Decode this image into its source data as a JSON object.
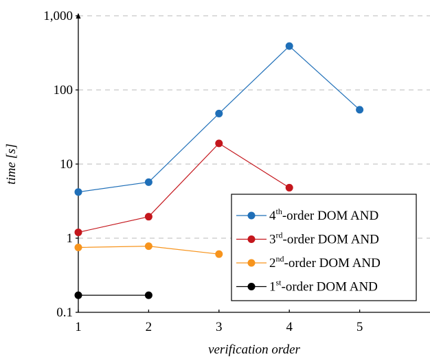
{
  "chart_data": {
    "type": "line",
    "xlabel": "verification order",
    "ylabel": "time [s]",
    "xlim": [
      1,
      6
    ],
    "ylim": [
      0.1,
      1000
    ],
    "yscale": "log",
    "grid": "horizontal-dashed",
    "legend_position": "bottom-right",
    "x_ticks": [
      "1",
      "2",
      "3",
      "4",
      "5"
    ],
    "y_ticks": [
      {
        "value": 0.1,
        "label": "0.1"
      },
      {
        "value": 1,
        "label": "1"
      },
      {
        "value": 10,
        "label": "10"
      },
      {
        "value": 100,
        "label": "100"
      },
      {
        "value": 1000,
        "label": "1,000"
      }
    ],
    "series": [
      {
        "name": "4th-order DOM AND",
        "name_order": "4",
        "name_sup": "th",
        "name_rest": "-order DOM AND",
        "color": "#1f6fb8",
        "x": [
          1,
          2,
          3,
          4,
          5
        ],
        "y": [
          4.2,
          5.7,
          48,
          390,
          54
        ]
      },
      {
        "name": "3rd-order DOM AND",
        "name_order": "3",
        "name_sup": "rd",
        "name_rest": "-order DOM AND",
        "color": "#c4161c",
        "x": [
          1,
          2,
          3,
          4
        ],
        "y": [
          1.2,
          1.95,
          19,
          4.8
        ]
      },
      {
        "name": "2nd-order DOM AND",
        "name_order": "2",
        "name_sup": "nd",
        "name_rest": "-order DOM AND",
        "color": "#f7941d",
        "x": [
          1,
          2,
          3
        ],
        "y": [
          0.75,
          0.78,
          0.61
        ]
      },
      {
        "name": "1st-order DOM AND",
        "name_order": "1",
        "name_sup": "st",
        "name_rest": "-order DOM AND",
        "color": "#000000",
        "x": [
          1,
          2
        ],
        "y": [
          0.17,
          0.17
        ]
      }
    ]
  }
}
